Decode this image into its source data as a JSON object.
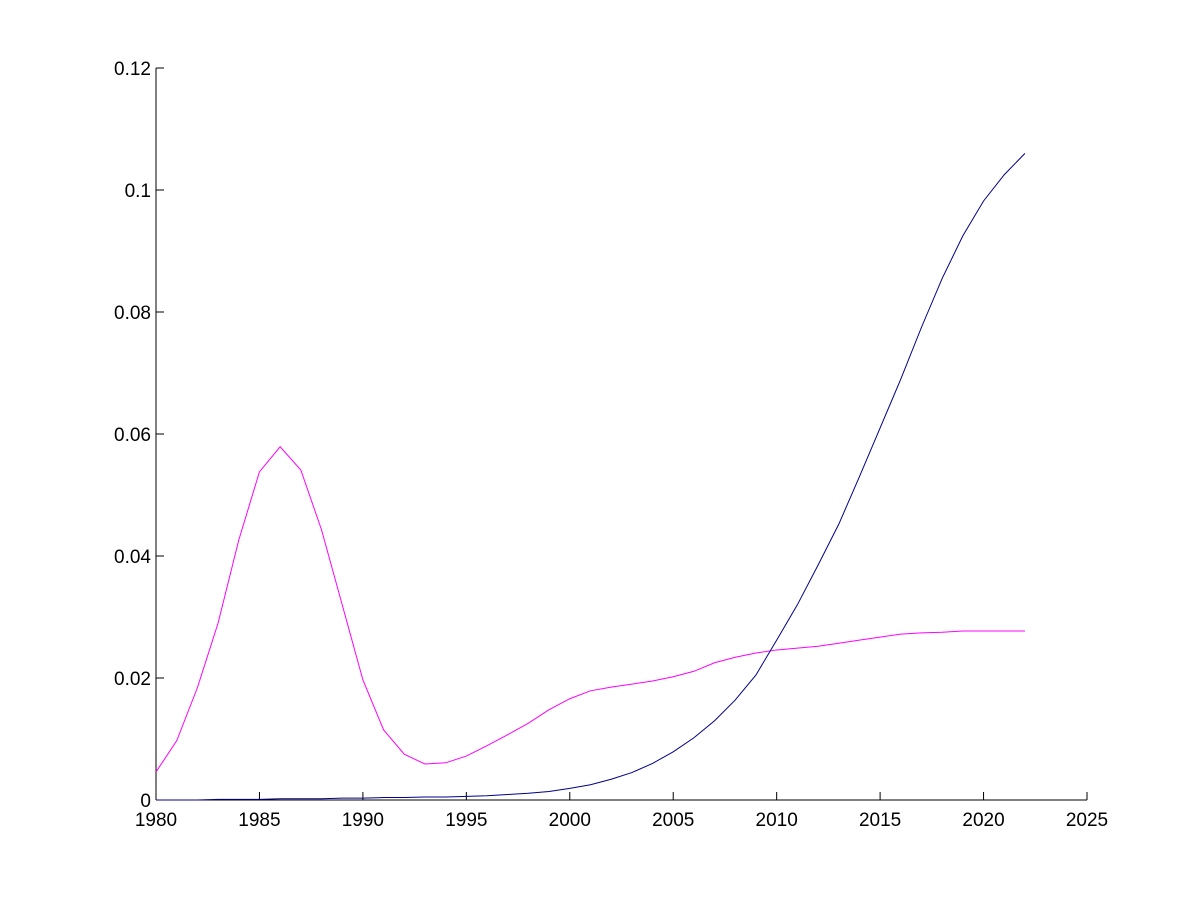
{
  "chart_data": {
    "type": "line",
    "x": [
      1980,
      1981,
      1982,
      1983,
      1984,
      1985,
      1986,
      1987,
      1988,
      1989,
      1990,
      1991,
      1992,
      1993,
      1994,
      1995,
      1996,
      1997,
      1998,
      1999,
      2000,
      2001,
      2002,
      2003,
      2004,
      2005,
      2006,
      2007,
      2008,
      2009,
      2010,
      2011,
      2012,
      2013,
      2014,
      2015,
      2016,
      2017,
      2018,
      2019,
      2020,
      2021,
      2022
    ],
    "series": [
      {
        "color": "#ff00ff",
        "values": [
          0.0046,
          0.0097,
          0.0184,
          0.029,
          0.0426,
          0.0538,
          0.0579,
          0.0541,
          0.0443,
          0.032,
          0.0197,
          0.0115,
          0.0075,
          0.0059,
          0.0061,
          0.0072,
          0.0089,
          0.0107,
          0.0126,
          0.0148,
          0.0166,
          0.0179,
          0.0185,
          0.019,
          0.0195,
          0.0202,
          0.0211,
          0.0225,
          0.0234,
          0.0241,
          0.0246,
          0.0249,
          0.0252,
          0.0257,
          0.0262,
          0.0267,
          0.0272,
          0.0274,
          0.0275,
          0.0277,
          0.0277,
          0.0277,
          0.0277
        ]
      },
      {
        "color": "#00008b",
        "values": [
          0,
          0,
          0,
          0.0001,
          0.0001,
          0.0001,
          0.0002,
          0.0002,
          0.0002,
          0.0003,
          0.0003,
          0.0004,
          0.0004,
          0.0005,
          0.0005,
          0.0006,
          0.0007,
          0.0009,
          0.0011,
          0.0014,
          0.0019,
          0.0025,
          0.0034,
          0.0045,
          0.006,
          0.0079,
          0.0102,
          0.013,
          0.0164,
          0.0205,
          0.0262,
          0.032,
          0.0385,
          0.0452,
          0.053,
          0.061,
          0.069,
          0.0775,
          0.0855,
          0.0925,
          0.0982,
          0.1025,
          0.106
        ]
      }
    ],
    "xlim": [
      1980,
      2025
    ],
    "xticks": [
      1980,
      1985,
      1990,
      1995,
      2000,
      2005,
      2010,
      2015,
      2020,
      2025
    ],
    "ylim": [
      0,
      0.12
    ],
    "yticks": [
      0,
      0.02,
      0.04,
      0.06,
      0.08,
      0.1,
      0.12
    ]
  }
}
